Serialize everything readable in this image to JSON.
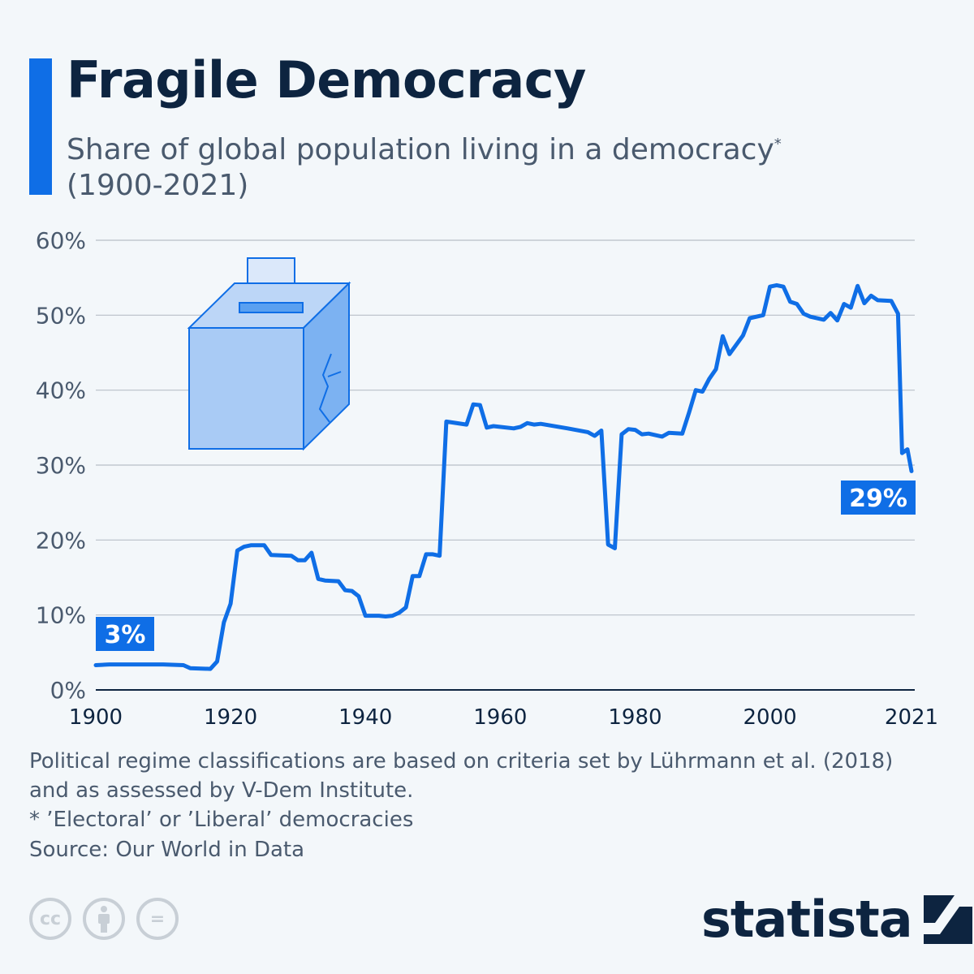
{
  "header": {
    "title": "Fragile Democracy",
    "subtitle_line1": "Share of global population living in a democracy",
    "subtitle_mark": "*",
    "subtitle_line2": "(1900-2021)"
  },
  "colors": {
    "accent": "#0f6ee6",
    "title": "#0d2440",
    "text": "#4a5a6e",
    "grid": "#b8bfc7"
  },
  "chart_data": {
    "type": "line",
    "title": "Fragile Democracy",
    "xlim": [
      1900,
      2021
    ],
    "ylim": [
      0,
      60
    ],
    "grid": true,
    "x_ticks": [
      "1900",
      "1920",
      "1940",
      "1960",
      "1980",
      "2000",
      "2021"
    ],
    "y_ticks": [
      "0%",
      "10%",
      "20%",
      "30%",
      "40%",
      "50%",
      "60%"
    ],
    "annotations": [
      {
        "label": "3%",
        "year": 1900
      },
      {
        "label": "29%",
        "year": 2021
      }
    ],
    "series": [
      {
        "color": "#0f6ee6",
        "points": [
          [
            1900,
            3.3
          ],
          [
            1902,
            3.4
          ],
          [
            1905,
            3.4
          ],
          [
            1910,
            3.4
          ],
          [
            1913,
            3.3
          ],
          [
            1914,
            2.9
          ],
          [
            1917,
            2.8
          ],
          [
            1918,
            3.8
          ],
          [
            1919,
            9.0
          ],
          [
            1920,
            11.5
          ],
          [
            1921,
            18.6
          ],
          [
            1922,
            19.1
          ],
          [
            1923,
            19.3
          ],
          [
            1925,
            19.3
          ],
          [
            1926,
            18.0
          ],
          [
            1929,
            17.9
          ],
          [
            1930,
            17.3
          ],
          [
            1931,
            17.3
          ],
          [
            1932,
            18.3
          ],
          [
            1933,
            14.8
          ],
          [
            1934,
            14.6
          ],
          [
            1936,
            14.5
          ],
          [
            1937,
            13.3
          ],
          [
            1938,
            13.2
          ],
          [
            1939,
            12.5
          ],
          [
            1940,
            9.9
          ],
          [
            1942,
            9.9
          ],
          [
            1943,
            9.8
          ],
          [
            1944,
            9.9
          ],
          [
            1945,
            10.3
          ],
          [
            1946,
            11.0
          ],
          [
            1947,
            15.2
          ],
          [
            1948,
            15.2
          ],
          [
            1949,
            18.1
          ],
          [
            1950,
            18.1
          ],
          [
            1951,
            17.9
          ],
          [
            1952,
            35.8
          ],
          [
            1955,
            35.4
          ],
          [
            1956,
            38.1
          ],
          [
            1957,
            38.0
          ],
          [
            1958,
            35.0
          ],
          [
            1959,
            35.2
          ],
          [
            1962,
            34.9
          ],
          [
            1963,
            35.1
          ],
          [
            1964,
            35.6
          ],
          [
            1965,
            35.4
          ],
          [
            1966,
            35.5
          ],
          [
            1970,
            34.9
          ],
          [
            1973,
            34.4
          ],
          [
            1974,
            33.9
          ],
          [
            1975,
            34.6
          ],
          [
            1976,
            19.4
          ],
          [
            1977,
            18.9
          ],
          [
            1978,
            34.1
          ],
          [
            1979,
            34.8
          ],
          [
            1980,
            34.7
          ],
          [
            1981,
            34.1
          ],
          [
            1982,
            34.2
          ],
          [
            1984,
            33.8
          ],
          [
            1985,
            34.3
          ],
          [
            1987,
            34.2
          ],
          [
            1988,
            37.0
          ],
          [
            1989,
            40.0
          ],
          [
            1990,
            39.8
          ],
          [
            1991,
            41.5
          ],
          [
            1992,
            42.8
          ],
          [
            1993,
            47.2
          ],
          [
            1994,
            44.8
          ],
          [
            1996,
            47.3
          ],
          [
            1997,
            49.6
          ],
          [
            1999,
            50.0
          ],
          [
            2000,
            53.8
          ],
          [
            2001,
            54.0
          ],
          [
            2002,
            53.8
          ],
          [
            2003,
            51.8
          ],
          [
            2004,
            51.5
          ],
          [
            2005,
            50.2
          ],
          [
            2006,
            49.8
          ],
          [
            2008,
            49.4
          ],
          [
            2009,
            50.3
          ],
          [
            2010,
            49.3
          ],
          [
            2011,
            51.5
          ],
          [
            2012,
            51.0
          ],
          [
            2013,
            53.9
          ],
          [
            2014,
            51.6
          ],
          [
            2015,
            52.6
          ],
          [
            2016,
            52.0
          ],
          [
            2018,
            51.9
          ],
          [
            2019,
            50.2
          ],
          [
            2019.6,
            31.6
          ],
          [
            2020.4,
            32.1
          ],
          [
            2021,
            29.2
          ]
        ]
      }
    ]
  },
  "footer": {
    "note1": "Political regime classifications are based on criteria set by Lührmann et al. (2018)",
    "note2": "and as assessed by V-Dem Institute.",
    "note3": "* ’Electoral’ or ’Liberal’ democracies",
    "source": "Source: Our World in Data",
    "license_icons": [
      "cc-icon",
      "attribution-icon",
      "no-derivatives-icon"
    ],
    "cc_label": "cc",
    "eq_label": "=",
    "logo": "statista"
  }
}
